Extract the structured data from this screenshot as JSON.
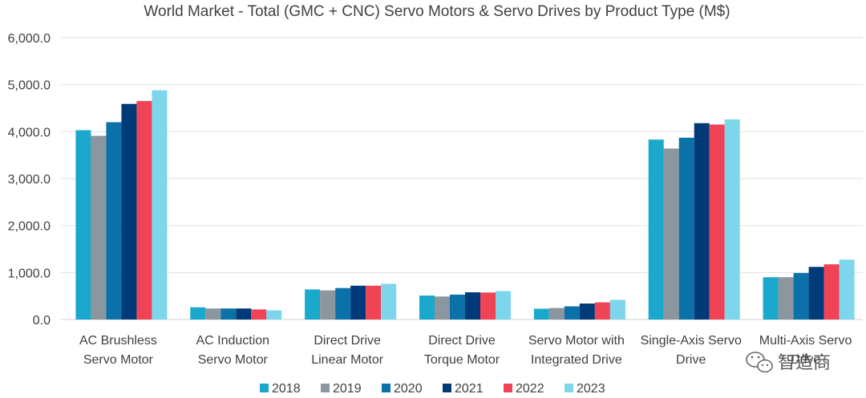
{
  "chart_data": {
    "type": "bar",
    "title": "World Market - Total (GMC + CNC) Servo Motors & Servo Drives by Product Type (M$)",
    "xlabel": "",
    "ylabel": "",
    "ylim": [
      0,
      6000
    ],
    "yticks": [
      "0.0",
      "1,000.0",
      "2,000.0",
      "3,000.0",
      "4,000.0",
      "5,000.0",
      "6,000.0"
    ],
    "grid": true,
    "legend_position": "bottom",
    "categories": [
      [
        "AC Brushless",
        "Servo Motor"
      ],
      [
        "AC Induction",
        "Servo Motor"
      ],
      [
        "Direct Drive",
        "Linear Motor"
      ],
      [
        "Direct Drive",
        "Torque Motor"
      ],
      [
        "Servo Motor with",
        "Integrated Drive"
      ],
      [
        "Single-Axis Servo",
        "Drive"
      ],
      [
        "Multi-Axis Servo",
        "Drive"
      ]
    ],
    "series": [
      {
        "name": "2018",
        "color": "#1AA8CC",
        "values": [
          4030,
          260,
          640,
          510,
          230,
          3830,
          900
        ]
      },
      {
        "name": "2019",
        "color": "#8C969E",
        "values": [
          3910,
          235,
          620,
          490,
          245,
          3640,
          900
        ]
      },
      {
        "name": "2020",
        "color": "#0A72A8",
        "values": [
          4200,
          235,
          670,
          530,
          280,
          3870,
          990
        ]
      },
      {
        "name": "2021",
        "color": "#003A78",
        "values": [
          4590,
          235,
          720,
          580,
          340,
          4180,
          1120
        ]
      },
      {
        "name": "2022",
        "color": "#F04356",
        "values": [
          4650,
          215,
          720,
          575,
          365,
          4150,
          1175
        ]
      },
      {
        "name": "2023",
        "color": "#7DD6EC",
        "values": [
          4880,
          195,
          760,
          605,
          420,
          4260,
          1275
        ]
      }
    ]
  },
  "watermark": {
    "text": "智造商",
    "icon": "wechat-icon"
  }
}
